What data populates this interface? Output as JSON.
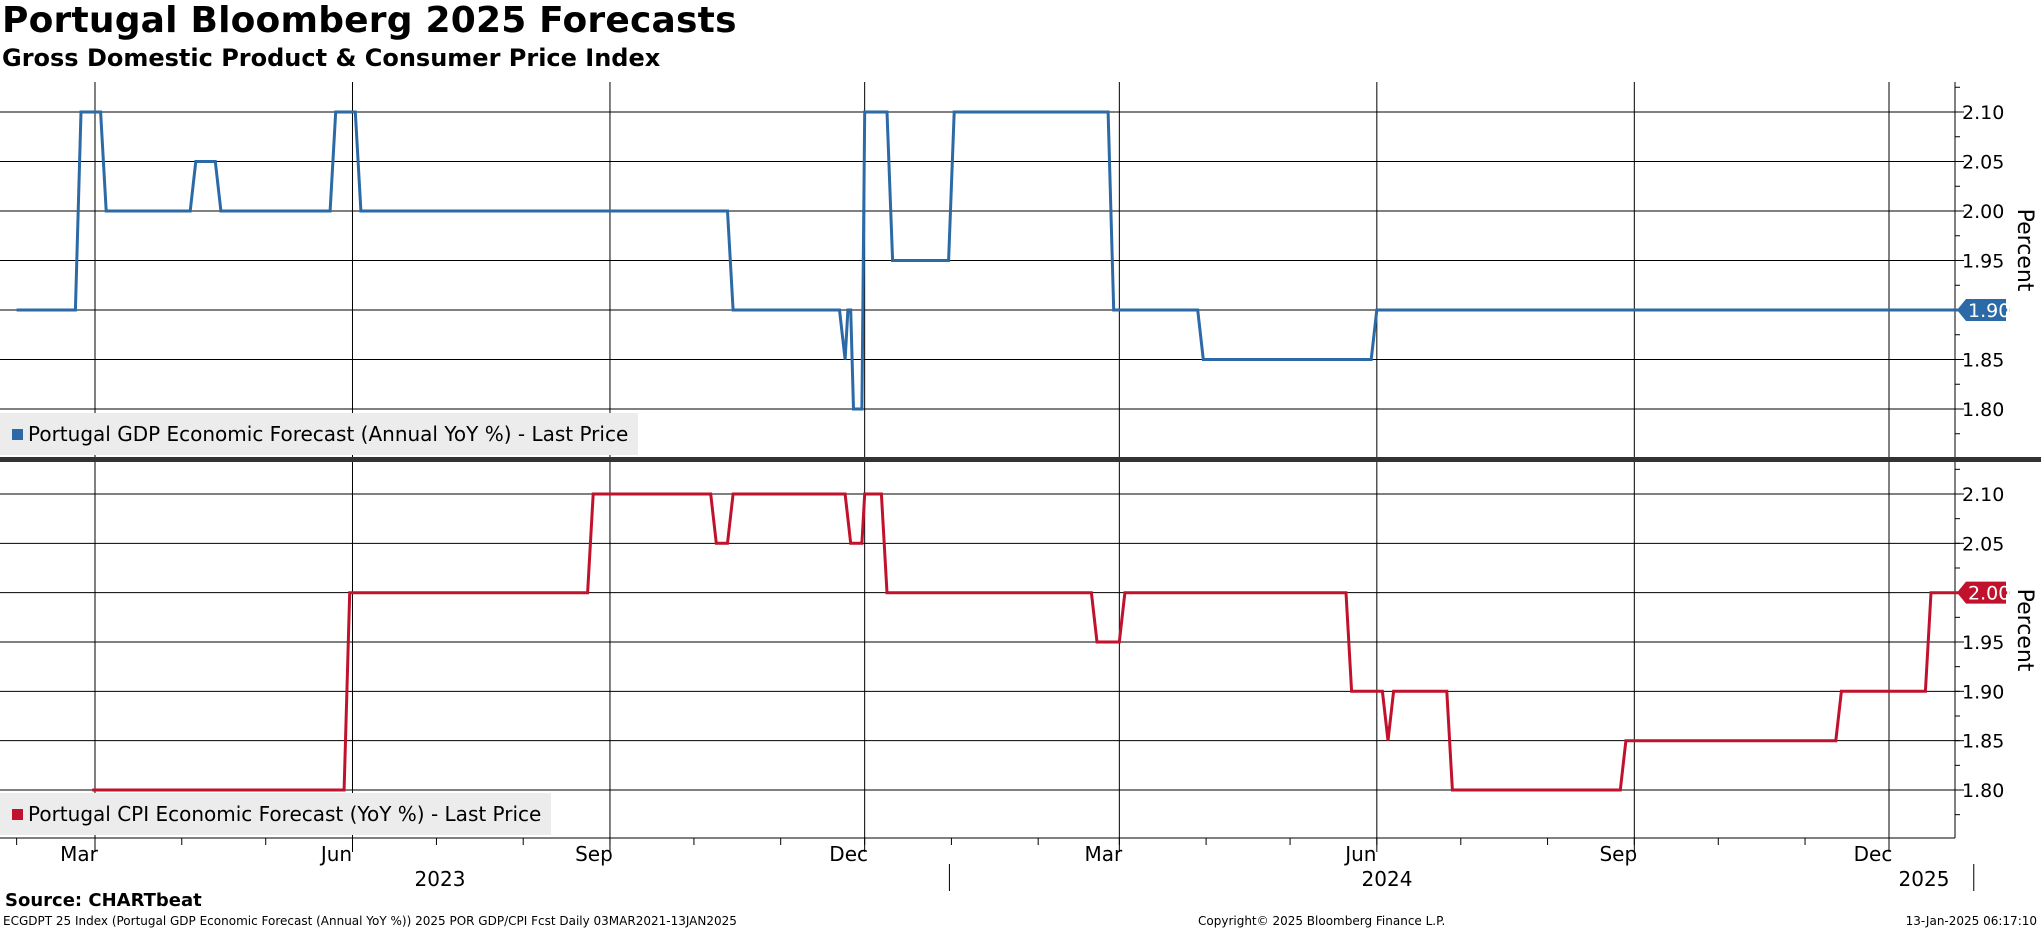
{
  "header": {
    "title": "Portugal Bloomberg 2025 Forecasts",
    "subtitle": "Gross Domestic Product & Consumer Price Index"
  },
  "footer": {
    "source": "Source: CHARTbeat",
    "left": "ECGDPT 25 Index (Portugal GDP Economic Forecast (Annual YoY %)) 2025 POR GDP/CPI Fcst  Daily 03MAR2021-13JAN2025",
    "middle": "Copyright© 2025 Bloomberg Finance L.P.",
    "right": "13-Jan-2025 06:17:10"
  },
  "colors": {
    "gdp": "#2b6aa6",
    "cpi": "#c0122c",
    "grid": "#000000",
    "legend_bg": "#ececec"
  },
  "chart_data": {
    "type": "line",
    "x_axis": {
      "month_labels": [
        "Mar",
        "Jun",
        "Sep",
        "Dec",
        "Mar",
        "Jun",
        "Sep",
        "Dec"
      ],
      "month_dates": [
        "2023-03-01",
        "2023-06-01",
        "2023-09-01",
        "2023-12-01",
        "2024-03-01",
        "2024-06-01",
        "2024-09-01",
        "2024-12-01"
      ],
      "year_labels": [
        "2023",
        "2024",
        "2025"
      ],
      "year_dates": [
        "2023-07-01",
        "2024-07-01",
        "2025-01-13"
      ],
      "year_boundaries": [
        "2024-01-01",
        "2025-01-01"
      ],
      "range": [
        "2023-02-05",
        "2025-02-01"
      ],
      "grid": true
    },
    "panels": [
      {
        "name": "Portugal GDP Economic Forecast (Annual YoY %) - Last Price",
        "ylabel": "Percent",
        "ylim": [
          1.75,
          2.13
        ],
        "yticks": [
          "1.80",
          "1.85",
          "1.90",
          "1.95",
          "2.00",
          "2.05",
          "2.10"
        ],
        "last_value": "1.90",
        "legend": "top-left of panel bottom",
        "points": [
          [
            "2023-02-01",
            1.9
          ],
          [
            "2023-02-22",
            1.9
          ],
          [
            "2023-02-24",
            2.1
          ],
          [
            "2023-03-03",
            2.1
          ],
          [
            "2023-03-05",
            2.0
          ],
          [
            "2023-04-04",
            2.0
          ],
          [
            "2023-04-06",
            2.05
          ],
          [
            "2023-04-13",
            2.05
          ],
          [
            "2023-04-15",
            2.0
          ],
          [
            "2023-05-24",
            2.0
          ],
          [
            "2023-05-26",
            2.1
          ],
          [
            "2023-06-02",
            2.1
          ],
          [
            "2023-06-04",
            2.0
          ],
          [
            "2023-10-13",
            2.0
          ],
          [
            "2023-10-15",
            1.9
          ],
          [
            "2023-11-22",
            1.9
          ],
          [
            "2023-11-24",
            1.85
          ],
          [
            "2023-11-25",
            1.9
          ],
          [
            "2023-11-26",
            1.9
          ],
          [
            "2023-11-27",
            1.8
          ],
          [
            "2023-11-30",
            1.8
          ],
          [
            "2023-12-01",
            2.1
          ],
          [
            "2023-12-09",
            2.1
          ],
          [
            "2023-12-11",
            1.95
          ],
          [
            "2023-12-31",
            1.95
          ],
          [
            "2024-01-02",
            2.1
          ],
          [
            "2024-02-26",
            2.1
          ],
          [
            "2024-02-28",
            1.9
          ],
          [
            "2024-03-29",
            1.9
          ],
          [
            "2024-03-31",
            1.85
          ],
          [
            "2024-05-30",
            1.85
          ],
          [
            "2024-06-01",
            1.9
          ],
          [
            "2024-12-31",
            1.9
          ],
          [
            "2025-01-13",
            1.9
          ]
        ]
      },
      {
        "name": "Portugal CPI Economic Forecast (YoY %) - Last Price",
        "ylabel": "Percent",
        "ylim": [
          1.75,
          2.13
        ],
        "yticks": [
          "1.80",
          "1.85",
          "1.90",
          "1.95",
          "2.00",
          "2.05",
          "2.10"
        ],
        "last_value": "2.00",
        "legend": "bottom-left",
        "points": [
          [
            "2023-02-28",
            1.8
          ],
          [
            "2023-05-29",
            1.8
          ],
          [
            "2023-05-31",
            2.0
          ],
          [
            "2023-08-24",
            2.0
          ],
          [
            "2023-08-26",
            2.1
          ],
          [
            "2023-10-07",
            2.1
          ],
          [
            "2023-10-09",
            2.05
          ],
          [
            "2023-10-13",
            2.05
          ],
          [
            "2023-10-15",
            2.1
          ],
          [
            "2023-11-24",
            2.1
          ],
          [
            "2023-11-26",
            2.05
          ],
          [
            "2023-11-30",
            2.05
          ],
          [
            "2023-12-01",
            2.1
          ],
          [
            "2023-12-07",
            2.1
          ],
          [
            "2023-12-09",
            2.0
          ],
          [
            "2024-02-20",
            2.0
          ],
          [
            "2024-02-22",
            1.95
          ],
          [
            "2024-03-01",
            1.95
          ],
          [
            "2024-03-03",
            2.0
          ],
          [
            "2024-05-21",
            2.0
          ],
          [
            "2024-05-23",
            1.9
          ],
          [
            "2024-06-03",
            1.9
          ],
          [
            "2024-06-05",
            1.85
          ],
          [
            "2024-06-07",
            1.9
          ],
          [
            "2024-06-26",
            1.9
          ],
          [
            "2024-06-28",
            1.8
          ],
          [
            "2024-08-27",
            1.8
          ],
          [
            "2024-08-29",
            1.85
          ],
          [
            "2024-11-12",
            1.85
          ],
          [
            "2024-11-14",
            1.9
          ],
          [
            "2024-12-14",
            1.9
          ],
          [
            "2024-12-16",
            2.0
          ],
          [
            "2025-01-13",
            2.0
          ]
        ]
      }
    ]
  }
}
